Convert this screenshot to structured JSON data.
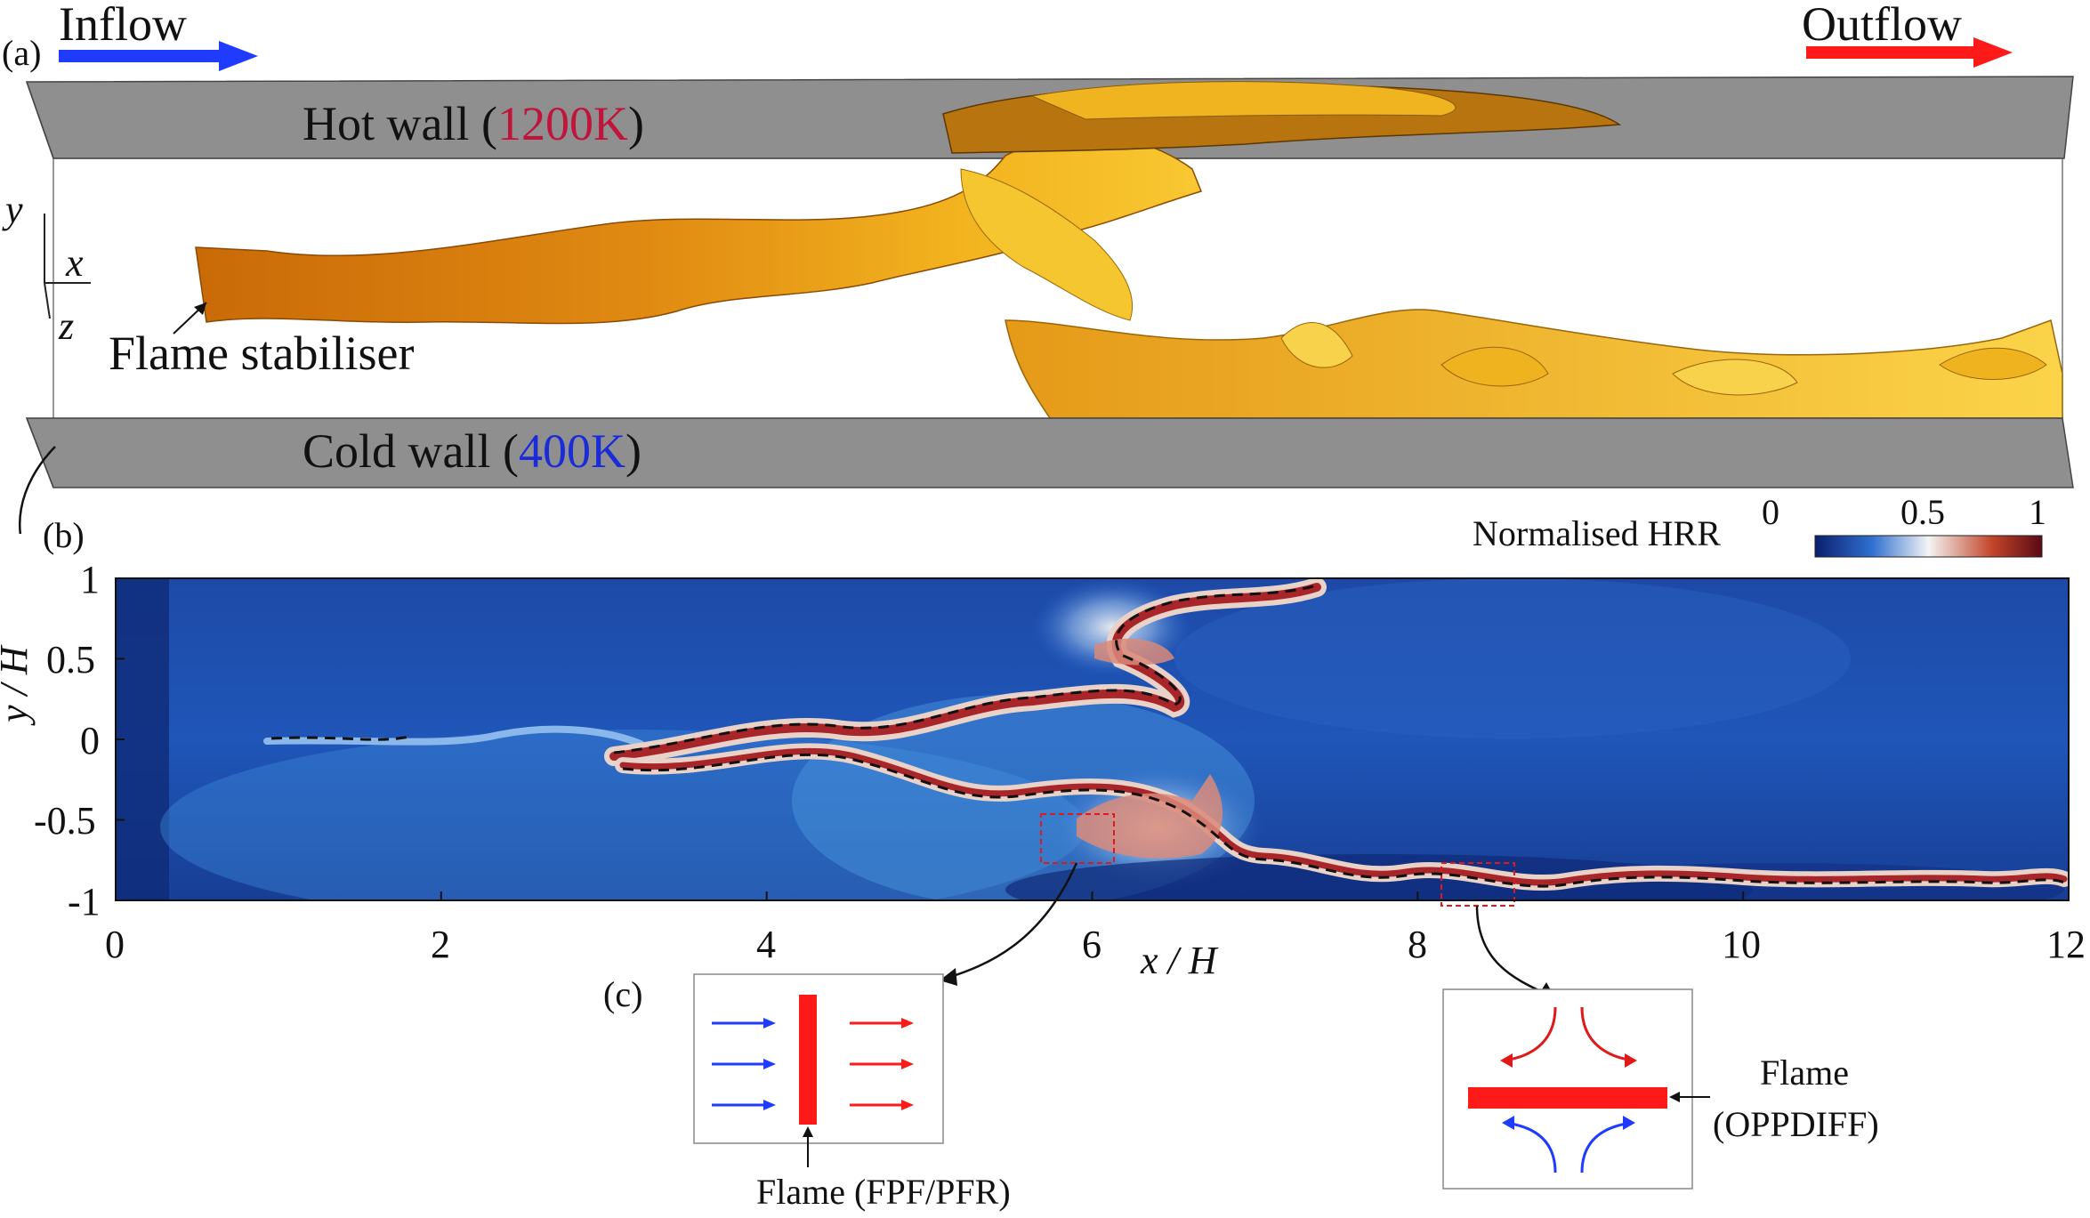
{
  "panel_a": {
    "tag": "(a)",
    "inflow": "Inflow",
    "outflow": "Outflow",
    "hot_wall_prefix": "Hot wall (",
    "hot_wall_temp": "1200K",
    "hot_wall_suffix": ")",
    "cold_wall_prefix": "Cold wall (",
    "cold_wall_temp": "400K",
    "cold_wall_suffix": ")",
    "stabiliser": "Flame stabiliser",
    "axis_y": "y",
    "axis_x": "x",
    "axis_z": "z",
    "colors": {
      "inflow_arrow": "#1f3bff",
      "outflow_arrow": "#ff1a1a",
      "hot_temp": "#c0143c",
      "cold_temp": "#1a2bd8",
      "wall": "#8a8a8a",
      "flame": "#e08a12"
    }
  },
  "panel_b": {
    "tag": "(b)",
    "colorbar_title": "Normalised HRR",
    "colorbar_ticks": [
      "0",
      "0.5",
      "1"
    ],
    "colorbar_colors": [
      "#0b1f6e",
      "#2f6fd0",
      "#f4f4f4",
      "#c2452a",
      "#5a0a14"
    ],
    "x_label": "x / H",
    "y_label": "y / H",
    "x_ticks": [
      "0",
      "2",
      "4",
      "6",
      "8",
      "10",
      "12"
    ],
    "y_ticks": [
      "1",
      "0.5",
      "0",
      "-0.5",
      "-1"
    ]
  },
  "panel_c": {
    "tag": "(c)",
    "left_caption": "Flame (FPF/PFR)",
    "right_caption_line1": "Flame",
    "right_caption_line2": "(OPPDIFF)"
  },
  "chart_data": {
    "type": "heatmap",
    "x_range": [
      0,
      12
    ],
    "y_range": [
      -1,
      1
    ],
    "xlabel": "x / H",
    "ylabel": "y / H",
    "colorbar": {
      "label": "Normalised HRR",
      "range": [
        0,
        1
      ]
    }
  }
}
